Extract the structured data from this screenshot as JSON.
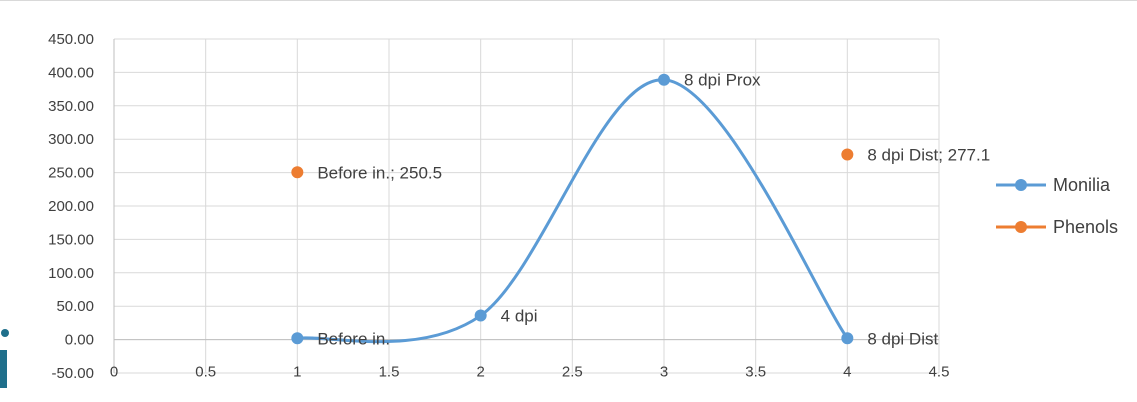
{
  "chart_data": {
    "type": "scatter",
    "title": "",
    "xlabel": "",
    "ylabel": "",
    "xlim": [
      0,
      4.5
    ],
    "ylim": [
      -50,
      450
    ],
    "x_ticks": [
      "0",
      "0.5",
      "1",
      "1.5",
      "2",
      "2.5",
      "3",
      "3.5",
      "4",
      "4.5"
    ],
    "y_ticks": [
      "450.00",
      "400.00",
      "350.00",
      "300.00",
      "250.00",
      "200.00",
      "150.00",
      "100.00",
      "50.00",
      "0.00",
      "-50.00"
    ],
    "grid": true,
    "legend_position": "right",
    "series": [
      {
        "name": "Monilia",
        "color": "#5b9bd5",
        "smooth": true,
        "points": [
          {
            "x": 1,
            "y": 2,
            "label": "Before in."
          },
          {
            "x": 2,
            "y": 36,
            "label": "4 dpi"
          },
          {
            "x": 3,
            "y": 389,
            "label": "8 dpi Prox"
          },
          {
            "x": 4,
            "y": 2,
            "label": "8 dpi Dist"
          }
        ]
      },
      {
        "name": "Phenols",
        "color": "#ed7d31",
        "smooth": false,
        "points": [
          {
            "x": 1,
            "y": 250.5,
            "label": "Before in.; 250.5"
          },
          {
            "x": 4,
            "y": 277.1,
            "label": "8 dpi Dist; 277.1"
          }
        ]
      }
    ]
  }
}
